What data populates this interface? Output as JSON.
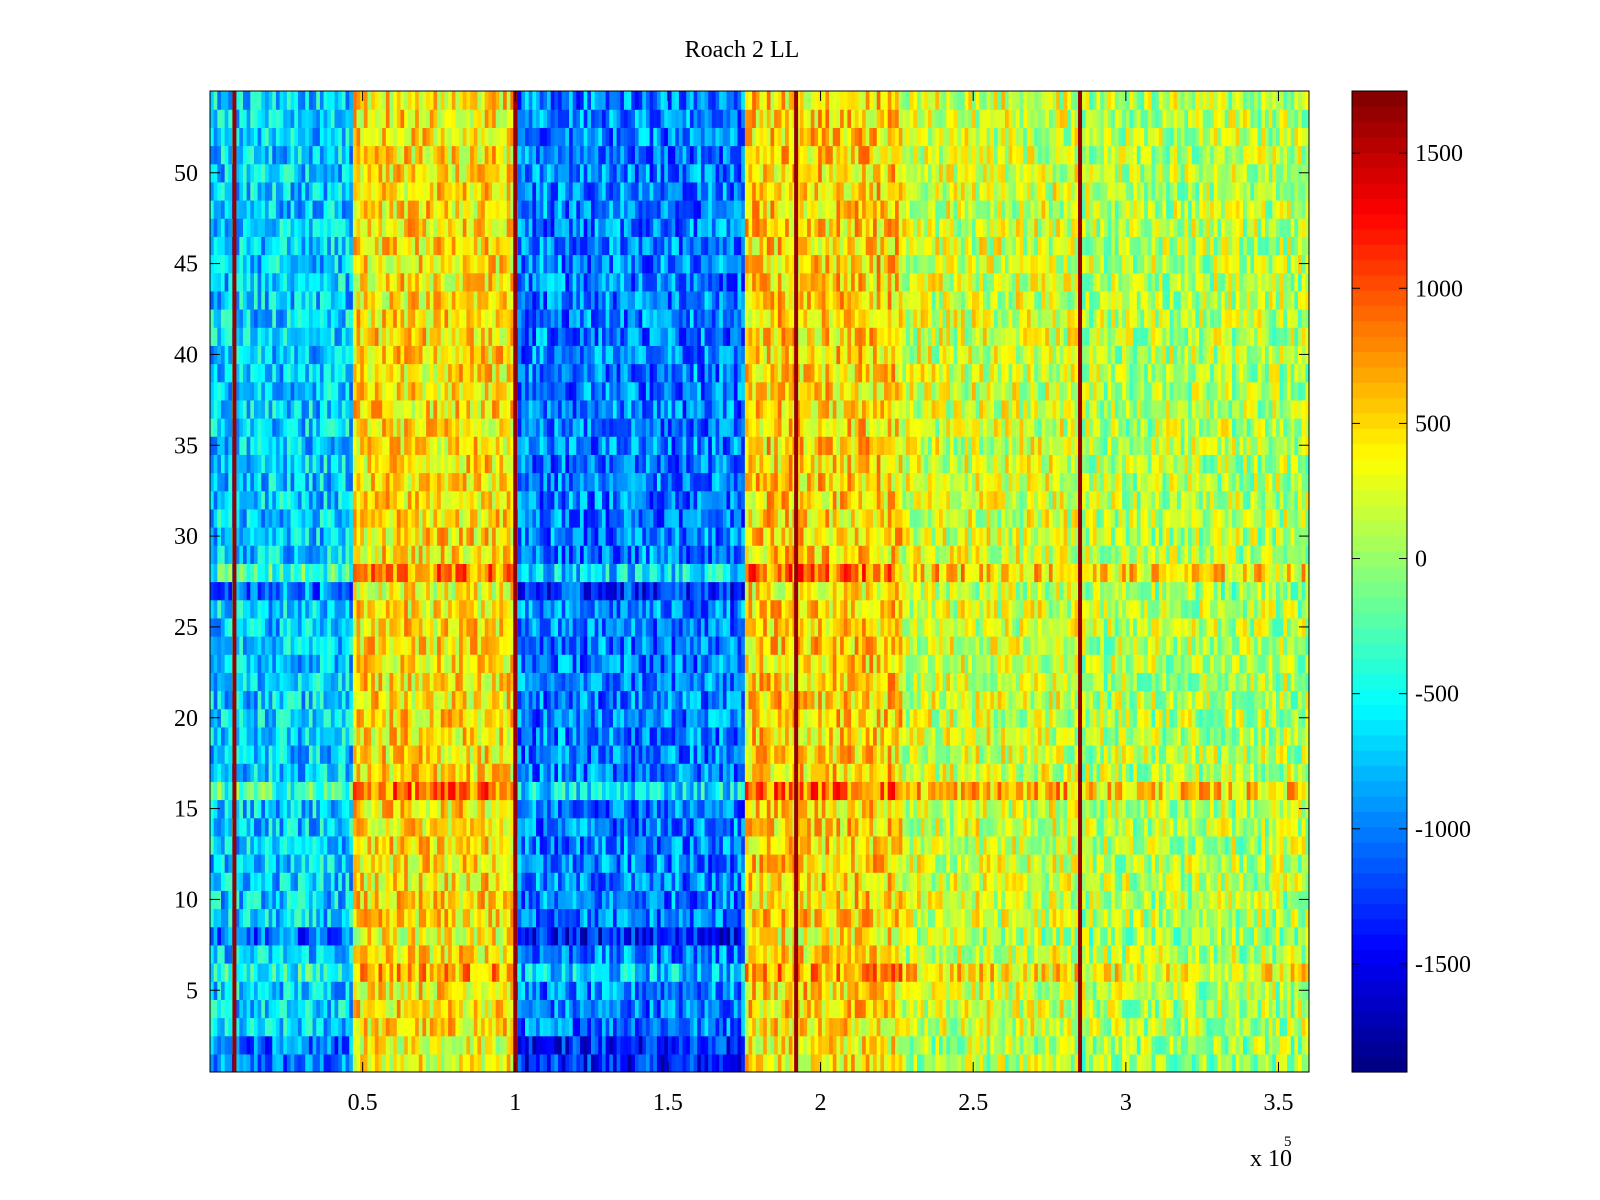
{
  "chart_data": {
    "type": "heatmap",
    "title": "Roach 2 LL",
    "xlabel": "",
    "ylabel": "",
    "x_exponent_label": "x 10",
    "x_exponent_power": "5",
    "xlim": [
      0,
      3.6
    ],
    "ylim": [
      0.5,
      54.5
    ],
    "x_ticks": [
      0.5,
      1,
      1.5,
      2,
      2.5,
      3,
      3.5
    ],
    "x_tick_labels": [
      "0.5",
      "1",
      "1.5",
      "2",
      "2.5",
      "3",
      "3.5"
    ],
    "y_ticks": [
      5,
      10,
      15,
      20,
      25,
      30,
      35,
      40,
      45,
      50
    ],
    "y_tick_labels": [
      "5",
      "10",
      "15",
      "20",
      "25",
      "30",
      "35",
      "40",
      "45",
      "50"
    ],
    "rows": 54,
    "colormap": "jet",
    "clim": [
      -1900,
      1730
    ],
    "colorbar_ticks": [
      -1500,
      -1000,
      -500,
      0,
      500,
      1000,
      1500
    ],
    "colorbar_tick_labels": [
      "-1500",
      "-1000",
      "-500",
      "0",
      "500",
      "1000",
      "1500"
    ],
    "segments": [
      {
        "x_start": 0.0,
        "x_end": 0.47,
        "mean_value": -700
      },
      {
        "x_start": 0.47,
        "x_end": 1.0,
        "mean_value": 450
      },
      {
        "x_start": 1.0,
        "x_end": 1.75,
        "mean_value": -1000
      },
      {
        "x_start": 1.75,
        "x_end": 2.27,
        "mean_value": 500
      },
      {
        "x_start": 2.27,
        "x_end": 2.85,
        "mean_value": 200
      },
      {
        "x_start": 2.85,
        "x_end": 3.6,
        "mean_value": 100
      }
    ],
    "spike_lines": [
      {
        "x": 0.08,
        "value": 1650
      },
      {
        "x": 1.0,
        "value": 1650
      },
      {
        "x": 1.92,
        "value": 1650
      },
      {
        "x": 2.85,
        "value": 1650
      }
    ],
    "row_anomalies": [
      {
        "rows": [
          1,
          2
        ],
        "offset": -350
      },
      {
        "rows": [
          8
        ],
        "offset": -400
      },
      {
        "rows": [
          6
        ],
        "offset": 250
      },
      {
        "rows": [
          16
        ],
        "offset": 400
      },
      {
        "rows": [
          27
        ],
        "offset": -300
      },
      {
        "rows": [
          28
        ],
        "offset": 350
      }
    ]
  }
}
